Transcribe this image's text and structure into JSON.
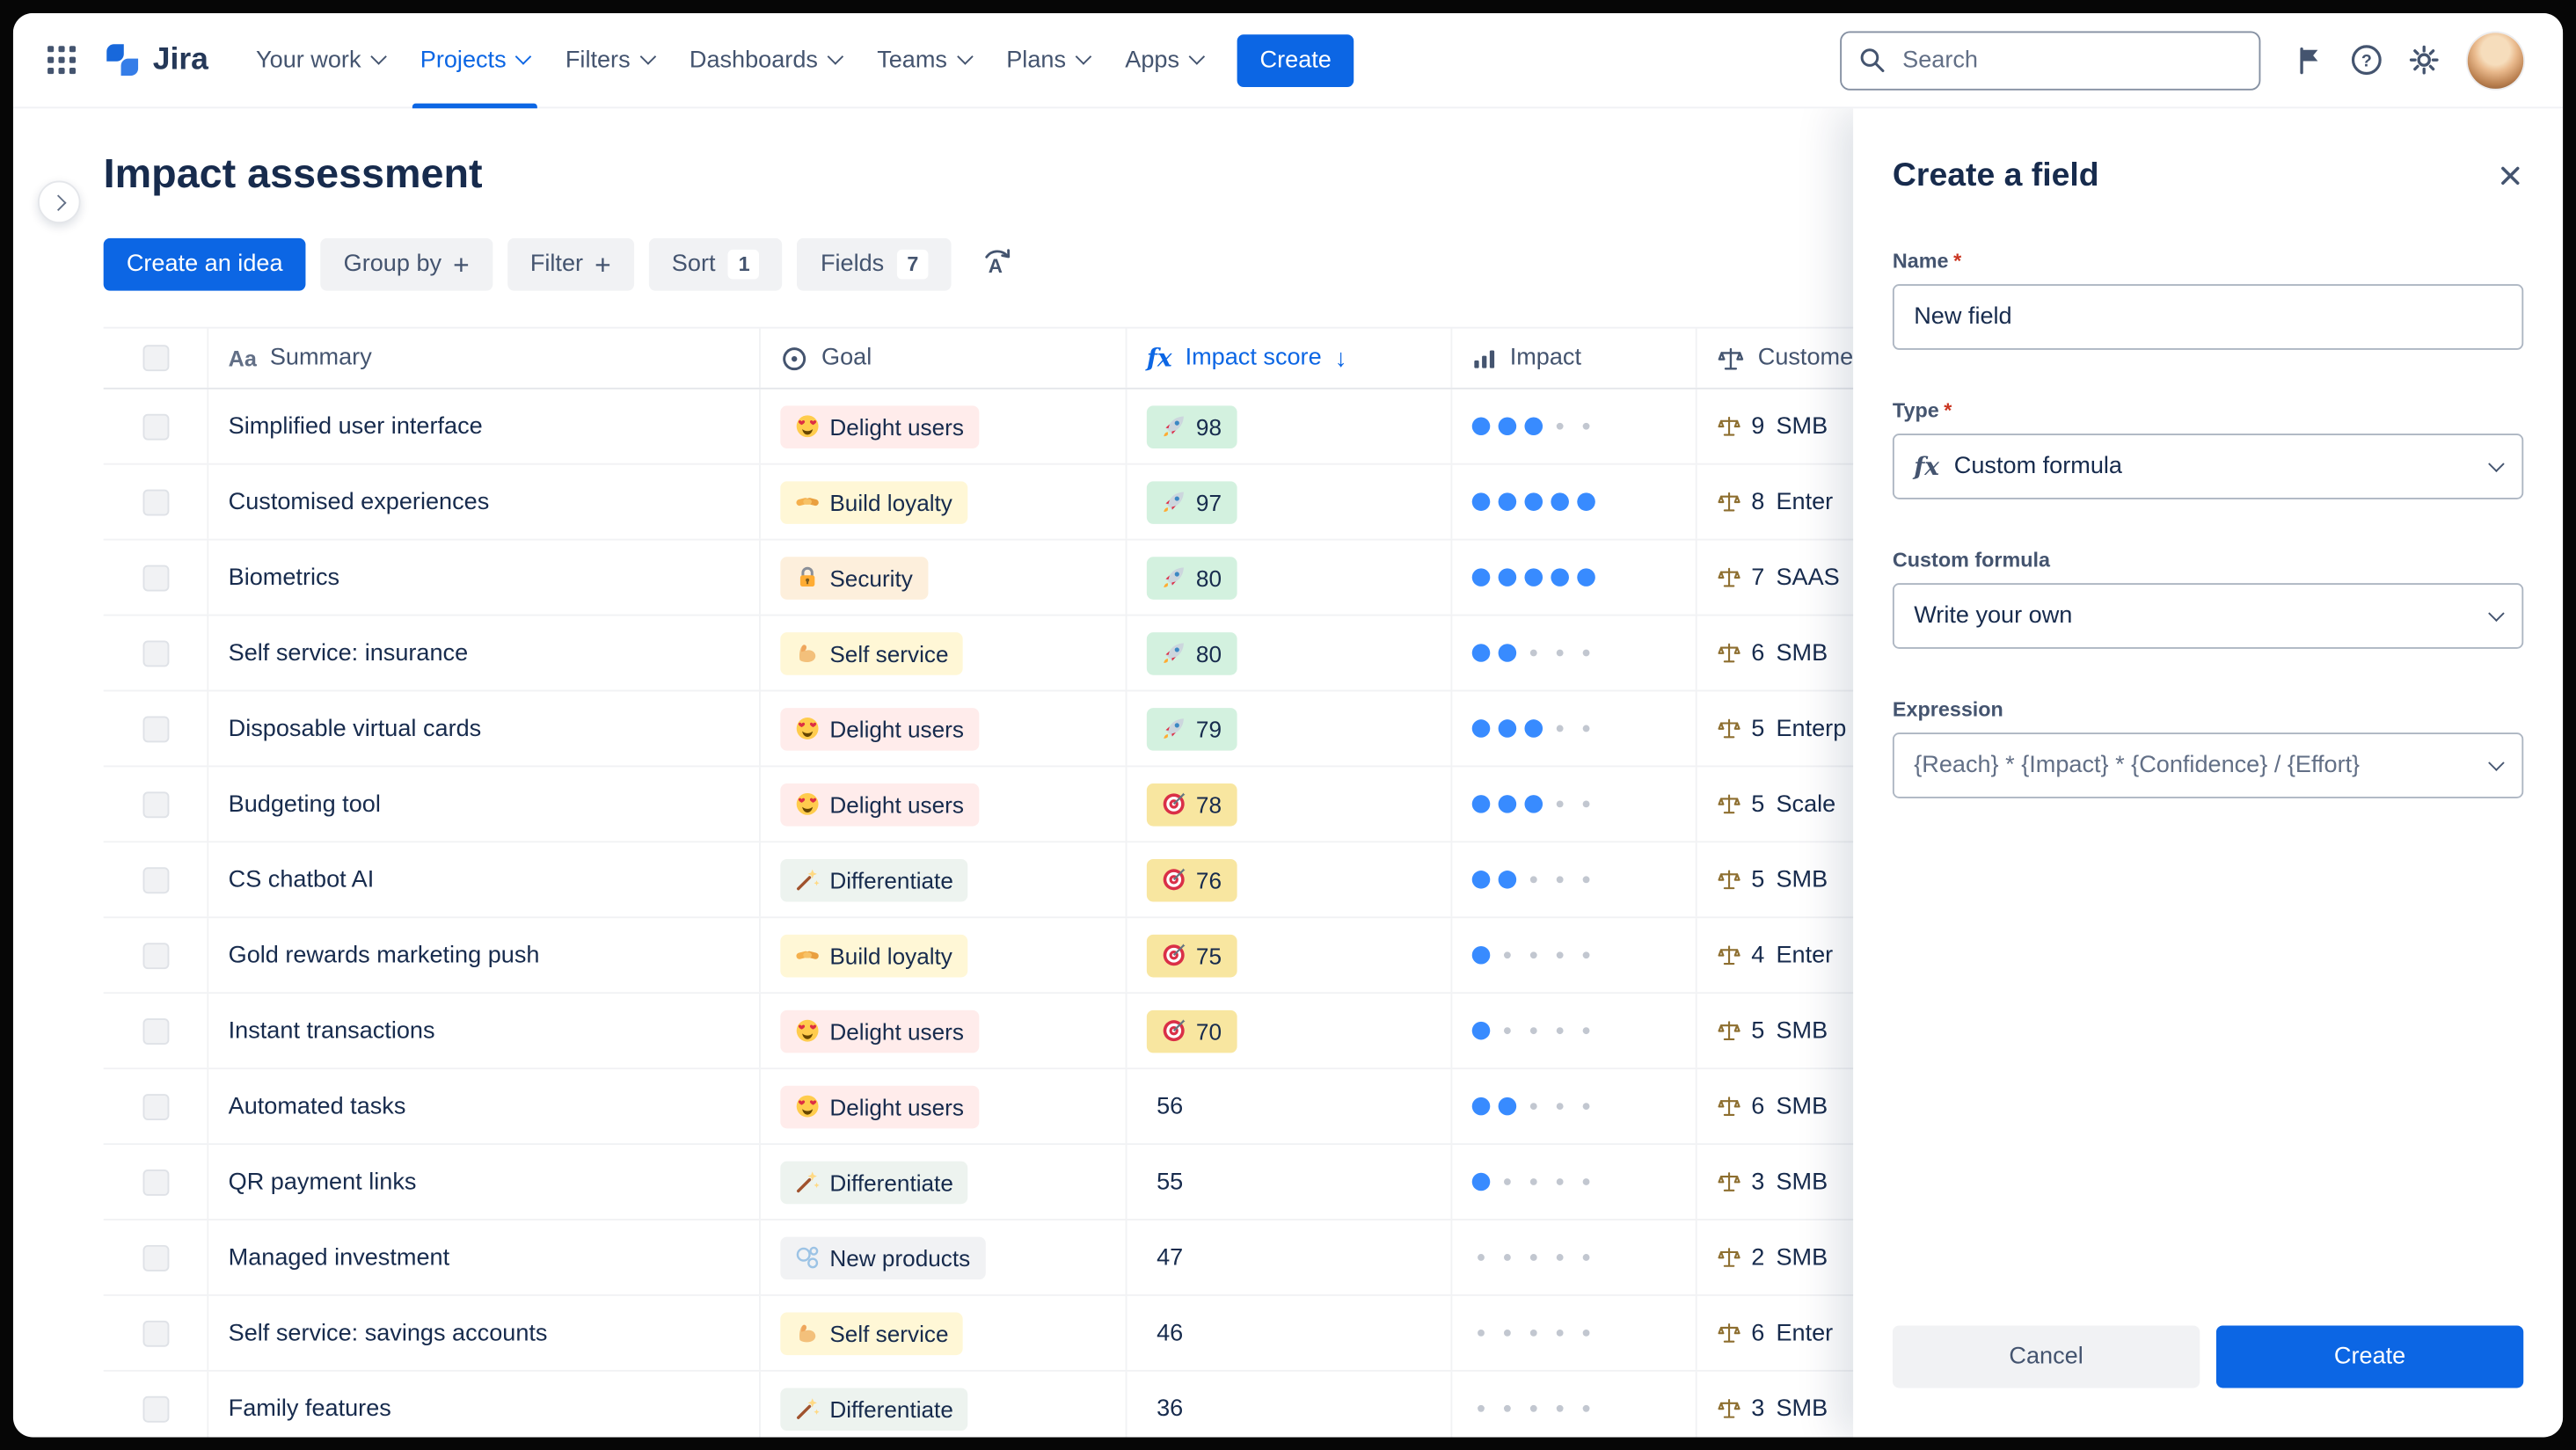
{
  "nav": {
    "logo_text": "Jira",
    "items": [
      "Your work",
      "Projects",
      "Filters",
      "Dashboards",
      "Teams",
      "Plans",
      "Apps"
    ],
    "active_item": "Projects",
    "create_button": "Create",
    "search_placeholder": "Search",
    "icons": [
      "app-switcher",
      "search",
      "notifications-flag",
      "help",
      "settings",
      "user-avatar"
    ]
  },
  "page": {
    "title": "Impact assessment",
    "toolbar": {
      "create_idea": "Create an idea",
      "group_by": "Group by",
      "filter": "Filter",
      "sort": "Sort",
      "sort_count": "1",
      "fields": "Fields",
      "fields_count": "7",
      "extra_icon": "alphabetical-sort"
    }
  },
  "table": {
    "headers": {
      "summary_icon": "Aa",
      "summary": "Summary",
      "goal_icon": "target-circle",
      "goal": "Goal",
      "impact_score_icon": "fx",
      "impact_score": "Impact score",
      "sort_direction": "descending",
      "impact_icon": "bar-chart",
      "impact": "Impact",
      "customer_icon": "scale",
      "customer": "Custome"
    },
    "impact_dots_max": 5,
    "rows": [
      {
        "summary": "Simplified user interface",
        "goal": {
          "label": "Delight users",
          "icon": "heart-eyes",
          "bg": "#FFECEB"
        },
        "score": {
          "value": "98",
          "icon": "rocket",
          "bg": "#D3F1DF"
        },
        "impact": 3,
        "customer": {
          "count": "9",
          "segment": "SMB"
        }
      },
      {
        "summary": "Customised experiences",
        "goal": {
          "label": "Build loyalty",
          "icon": "handshake",
          "bg": "#FFF7D6"
        },
        "score": {
          "value": "97",
          "icon": "rocket",
          "bg": "#D3F1DF"
        },
        "impact": 5,
        "customer": {
          "count": "8",
          "segment": "Enter"
        }
      },
      {
        "summary": "Biometrics",
        "goal": {
          "label": "Security",
          "icon": "lock",
          "bg": "#FDEFDC"
        },
        "score": {
          "value": "80",
          "icon": "rocket",
          "bg": "#D3F1DF"
        },
        "impact": 5,
        "customer": {
          "count": "7",
          "segment": "SAAS"
        }
      },
      {
        "summary": "Self service: insurance",
        "goal": {
          "label": "Self service",
          "icon": "muscle",
          "bg": "#FFF7D6"
        },
        "score": {
          "value": "80",
          "icon": "rocket",
          "bg": "#D3F1DF"
        },
        "impact": 2,
        "customer": {
          "count": "6",
          "segment": "SMB"
        }
      },
      {
        "summary": "Disposable virtual cards",
        "goal": {
          "label": "Delight users",
          "icon": "heart-eyes",
          "bg": "#FFECEB"
        },
        "score": {
          "value": "79",
          "icon": "rocket",
          "bg": "#D3F1DF"
        },
        "impact": 3,
        "customer": {
          "count": "5",
          "segment": "Enterp"
        }
      },
      {
        "summary": "Budgeting tool",
        "goal": {
          "label": "Delight users",
          "icon": "heart-eyes",
          "bg": "#FFECEB"
        },
        "score": {
          "value": "78",
          "icon": "dart",
          "bg": "#F8E6A0"
        },
        "impact": 3,
        "customer": {
          "count": "5",
          "segment": "Scale"
        }
      },
      {
        "summary": "CS chatbot AI",
        "goal": {
          "label": "Differentiate",
          "icon": "wand",
          "bg": "#EDF3EF"
        },
        "score": {
          "value": "76",
          "icon": "dart",
          "bg": "#F8E6A0"
        },
        "impact": 2,
        "customer": {
          "count": "5",
          "segment": "SMB"
        }
      },
      {
        "summary": "Gold rewards marketing push",
        "goal": {
          "label": "Build loyalty",
          "icon": "handshake",
          "bg": "#FFF7D6"
        },
        "score": {
          "value": "75",
          "icon": "dart",
          "bg": "#F8E6A0"
        },
        "impact": 1,
        "customer": {
          "count": "4",
          "segment": "Enter"
        }
      },
      {
        "summary": "Instant transactions",
        "goal": {
          "label": "Delight users",
          "icon": "heart-eyes",
          "bg": "#FFECEB"
        },
        "score": {
          "value": "70",
          "icon": "dart",
          "bg": "#F8E6A0"
        },
        "impact": 1,
        "customer": {
          "count": "5",
          "segment": "SMB"
        }
      },
      {
        "summary": "Automated tasks",
        "goal": {
          "label": "Delight users",
          "icon": "heart-eyes",
          "bg": "#FFECEB"
        },
        "score": {
          "value": "56",
          "icon": null,
          "bg": null
        },
        "impact": 2,
        "customer": {
          "count": "6",
          "segment": "SMB"
        }
      },
      {
        "summary": "QR payment links",
        "goal": {
          "label": "Differentiate",
          "icon": "wand",
          "bg": "#EDF3EF"
        },
        "score": {
          "value": "55",
          "icon": null,
          "bg": null
        },
        "impact": 1,
        "customer": {
          "count": "3",
          "segment": "SMB"
        }
      },
      {
        "summary": "Managed investment",
        "goal": {
          "label": "New products",
          "icon": "bubbles",
          "bg": "#F1F2F4"
        },
        "score": {
          "value": "47",
          "icon": null,
          "bg": null
        },
        "impact": 0,
        "customer": {
          "count": "2",
          "segment": "SMB"
        }
      },
      {
        "summary": "Self service: savings accounts",
        "goal": {
          "label": "Self service",
          "icon": "muscle",
          "bg": "#FFF7D6"
        },
        "score": {
          "value": "46",
          "icon": null,
          "bg": null
        },
        "impact": 0,
        "customer": {
          "count": "6",
          "segment": "Enter"
        }
      },
      {
        "summary": "Family features",
        "goal": {
          "label": "Differentiate",
          "icon": "wand",
          "bg": "#EDF3EF"
        },
        "score": {
          "value": "36",
          "icon": null,
          "bg": null
        },
        "impact": 0,
        "customer": {
          "count": "3",
          "segment": "SMB"
        }
      }
    ]
  },
  "panel": {
    "title": "Create a field",
    "close_icon": "close",
    "required_marker": "*",
    "name_label": "Name",
    "name_value": "New field",
    "type_label": "Type",
    "type_icon": "fx",
    "type_value": "Custom formula",
    "custom_formula_label": "Custom formula",
    "custom_formula_value": "Write your own",
    "expression_label": "Expression",
    "expression_value": "{Reach} * {Impact} * {Confidence} / {Effort}",
    "cancel_button": "Cancel",
    "create_button": "Create"
  },
  "colors": {
    "accent_blue": "#0C66E4",
    "text_primary": "#172B4D",
    "text_secondary": "#44546F",
    "impact_dot_filled": "#388BFF",
    "score_chip_green": "#D3F1DF",
    "score_chip_yellow": "#F8E6A0"
  }
}
